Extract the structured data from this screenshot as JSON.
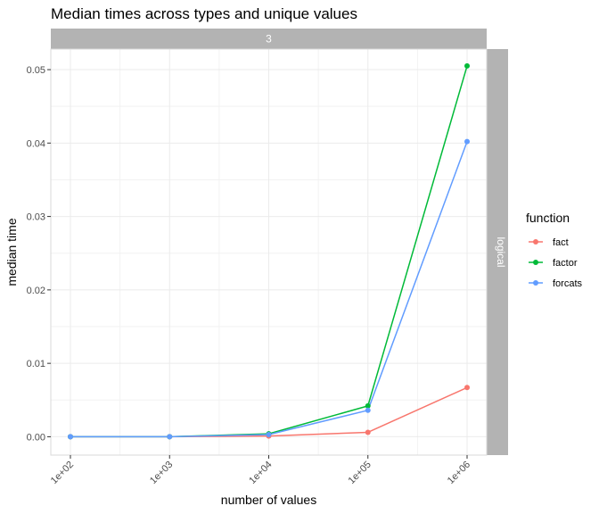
{
  "chart_data": {
    "type": "line",
    "title": "Median times across types and unique values",
    "xlabel": "number of values",
    "ylabel": "median time",
    "x_scale": "log10",
    "x": [
      100,
      1000,
      10000,
      100000,
      1000000
    ],
    "xticks": [
      {
        "value": 100,
        "label": "1e+02"
      },
      {
        "value": 1000,
        "label": "1e+03"
      },
      {
        "value": 10000,
        "label": "1e+04"
      },
      {
        "value": 100000,
        "label": "1e+05"
      },
      {
        "value": 1000000,
        "label": "1e+06"
      }
    ],
    "yticks": [
      {
        "value": 0.0,
        "label": "0.00"
      },
      {
        "value": 0.01,
        "label": "0.01"
      },
      {
        "value": 0.02,
        "label": "0.02"
      },
      {
        "value": 0.03,
        "label": "0.03"
      },
      {
        "value": 0.04,
        "label": "0.04"
      },
      {
        "value": 0.05,
        "label": "0.05"
      }
    ],
    "ylim": [
      -0.0025,
      0.0528
    ],
    "grid": true,
    "facet_top": "3",
    "facet_right": "logical",
    "legend": {
      "title": "function",
      "position": "right"
    },
    "series": [
      {
        "name": "fact",
        "color": "#F8766D",
        "values": [
          0.0,
          0.0,
          0.0001,
          0.0006,
          0.0067
        ]
      },
      {
        "name": "factor",
        "color": "#00BA38",
        "values": [
          0.0,
          0.0,
          0.0004,
          0.0042,
          0.0505
        ]
      },
      {
        "name": "forcats",
        "color": "#619CFF",
        "values": [
          0.0,
          0.0,
          0.0003,
          0.0036,
          0.0402
        ]
      }
    ]
  }
}
